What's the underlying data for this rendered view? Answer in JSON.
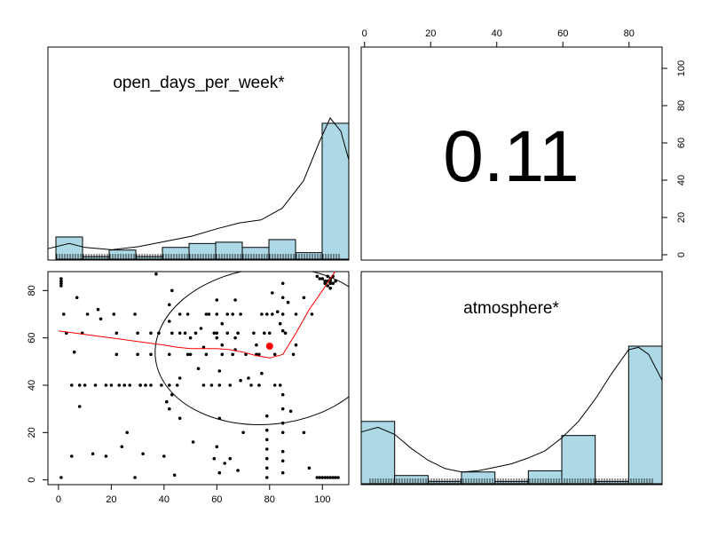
{
  "chart_data": [
    {
      "type": "histogram",
      "title": "open_days_per_week*",
      "bars": [
        {
          "x0": -1,
          "x1": 9,
          "height": 8.5
        },
        {
          "x0": 9,
          "x1": 19,
          "height": 1.0
        },
        {
          "x0": 19,
          "x1": 29,
          "height": 3.5
        },
        {
          "x0": 29,
          "x1": 39,
          "height": 1.0
        },
        {
          "x0": 39,
          "x1": 49,
          "height": 4.5
        },
        {
          "x0": 49,
          "x1": 59,
          "height": 6.0
        },
        {
          "x0": 59,
          "x1": 69,
          "height": 6.5
        },
        {
          "x0": 69,
          "x1": 79,
          "height": 4.5
        },
        {
          "x0": 79,
          "x1": 89,
          "height": 7.5
        },
        {
          "x0": 89,
          "x1": 99,
          "height": 2.5
        },
        {
          "x0": 99,
          "x1": 109,
          "height": 52
        }
      ],
      "density": [
        [
          -4,
          4
        ],
        [
          4,
          6
        ],
        [
          10,
          4.5
        ],
        [
          20,
          3.6
        ],
        [
          30,
          4.8
        ],
        [
          40,
          6.8
        ],
        [
          50,
          8.8
        ],
        [
          60,
          11.8
        ],
        [
          68,
          13.9
        ],
        [
          76,
          15
        ],
        [
          84,
          19.5
        ],
        [
          92,
          30
        ],
        [
          98,
          45
        ],
        [
          102,
          54
        ],
        [
          106,
          49
        ],
        [
          109,
          38
        ]
      ],
      "xlim": [
        -4,
        109
      ],
      "ylim": [
        0,
        54
      ]
    },
    {
      "type": "correlation",
      "value": "0.11",
      "x_ticks": [
        "0",
        "20",
        "40",
        "60",
        "80"
      ],
      "y_ticks": [
        "0",
        "20",
        "40",
        "60",
        "80",
        "100"
      ]
    },
    {
      "type": "scatter",
      "xlabel_ticks": [
        "0",
        "20",
        "40",
        "60",
        "80",
        "100"
      ],
      "ylabel_ticks": [
        "0",
        "20",
        "40",
        "60",
        "80"
      ],
      "xlim": [
        -4,
        110
      ],
      "ylim": [
        -2,
        88
      ],
      "points": [
        [
          1,
          84
        ],
        [
          1,
          83
        ],
        [
          1,
          85
        ],
        [
          1,
          82
        ],
        [
          1,
          1
        ],
        [
          2,
          70
        ],
        [
          3,
          62
        ],
        [
          5,
          40
        ],
        [
          5,
          10
        ],
        [
          6,
          54
        ],
        [
          7,
          77
        ],
        [
          8,
          31
        ],
        [
          8,
          40
        ],
        [
          9,
          62
        ],
        [
          10,
          40
        ],
        [
          11,
          70
        ],
        [
          13,
          11
        ],
        [
          14,
          40
        ],
        [
          15,
          72
        ],
        [
          16,
          68
        ],
        [
          18,
          10
        ],
        [
          18,
          40
        ],
        [
          20,
          40
        ],
        [
          21,
          70
        ],
        [
          22,
          53
        ],
        [
          22,
          62
        ],
        [
          23,
          40
        ],
        [
          24,
          14
        ],
        [
          25,
          40
        ],
        [
          26,
          20
        ],
        [
          27,
          40
        ],
        [
          29,
          1
        ],
        [
          29,
          70
        ],
        [
          30,
          53
        ],
        [
          30,
          62
        ],
        [
          31,
          40
        ],
        [
          31,
          40
        ],
        [
          32,
          11
        ],
        [
          33,
          40
        ],
        [
          35,
          62
        ],
        [
          35,
          53
        ],
        [
          35,
          40
        ],
        [
          37,
          87
        ],
        [
          38,
          62
        ],
        [
          39,
          40
        ],
        [
          40,
          10
        ],
        [
          41,
          33
        ],
        [
          42,
          40
        ],
        [
          42,
          30
        ],
        [
          42,
          53
        ],
        [
          42,
          67
        ],
        [
          42,
          74
        ],
        [
          43,
          62
        ],
        [
          43,
          80
        ],
        [
          43,
          36
        ],
        [
          44,
          2
        ],
        [
          45,
          40
        ],
        [
          46,
          26
        ],
        [
          46,
          43
        ],
        [
          46,
          62
        ],
        [
          46,
          70
        ],
        [
          48,
          62
        ],
        [
          49,
          53
        ],
        [
          49,
          70
        ],
        [
          50,
          53
        ],
        [
          50,
          60
        ],
        [
          51,
          16
        ],
        [
          52,
          62
        ],
        [
          53,
          47
        ],
        [
          54,
          64
        ],
        [
          55,
          40
        ],
        [
          55,
          56
        ],
        [
          56,
          53
        ],
        [
          56,
          70
        ],
        [
          57,
          70
        ],
        [
          58,
          40
        ],
        [
          59,
          9
        ],
        [
          59,
          62
        ],
        [
          60,
          14
        ],
        [
          60,
          60
        ],
        [
          60,
          76
        ],
        [
          60,
          70
        ],
        [
          60,
          62
        ],
        [
          61,
          40
        ],
        [
          61,
          46
        ],
        [
          61,
          26
        ],
        [
          61,
          3
        ],
        [
          62,
          57
        ],
        [
          62,
          66
        ],
        [
          62,
          53
        ],
        [
          63,
          7
        ],
        [
          64,
          62
        ],
        [
          64,
          70
        ],
        [
          65,
          40
        ],
        [
          65,
          9
        ],
        [
          66,
          70
        ],
        [
          66,
          53
        ],
        [
          67,
          55
        ],
        [
          67,
          60
        ],
        [
          67,
          76
        ],
        [
          68,
          62
        ],
        [
          68,
          4
        ],
        [
          69,
          42
        ],
        [
          69,
          70
        ],
        [
          70,
          20
        ],
        [
          71,
          53
        ],
        [
          72,
          43
        ],
        [
          73,
          40
        ],
        [
          74,
          62
        ],
        [
          75,
          57
        ],
        [
          75,
          53
        ],
        [
          76,
          40
        ],
        [
          76,
          53
        ],
        [
          77,
          45
        ],
        [
          77,
          70
        ],
        [
          78,
          62
        ],
        [
          79,
          70
        ],
        [
          79,
          27
        ],
        [
          79,
          21
        ],
        [
          79,
          17
        ],
        [
          79,
          13
        ],
        [
          79,
          9
        ],
        [
          79,
          5
        ],
        [
          79,
          1
        ],
        [
          80,
          62
        ],
        [
          81,
          70
        ],
        [
          81,
          79
        ],
        [
          82,
          53
        ],
        [
          82,
          40
        ],
        [
          83,
          71
        ],
        [
          84,
          66
        ],
        [
          84,
          40
        ],
        [
          85,
          83
        ],
        [
          85,
          77
        ],
        [
          85,
          70
        ],
        [
          85,
          63
        ],
        [
          85,
          36
        ],
        [
          85,
          30
        ],
        [
          85,
          24
        ],
        [
          85,
          20
        ],
        [
          85,
          12
        ],
        [
          85,
          8
        ],
        [
          85,
          3
        ],
        [
          86,
          62
        ],
        [
          87,
          75
        ],
        [
          88,
          29
        ],
        [
          89,
          53
        ],
        [
          90,
          57
        ],
        [
          90,
          70
        ],
        [
          93,
          77
        ],
        [
          93,
          20
        ],
        [
          95,
          5
        ],
        [
          96,
          70
        ],
        [
          98,
          86
        ],
        [
          99,
          85
        ],
        [
          100,
          85
        ],
        [
          101,
          84
        ],
        [
          102,
          86
        ],
        [
          103,
          84
        ],
        [
          104,
          83
        ],
        [
          102,
          82
        ],
        [
          103,
          85
        ],
        [
          104,
          86
        ],
        [
          105,
          84
        ],
        [
          103,
          81
        ],
        [
          101,
          83
        ],
        [
          103,
          83
        ],
        [
          102,
          84
        ],
        [
          98,
          1
        ],
        [
          99,
          1
        ],
        [
          100,
          1
        ],
        [
          101,
          1
        ],
        [
          102,
          1
        ],
        [
          103,
          1
        ],
        [
          104,
          1
        ],
        [
          105,
          1
        ],
        [
          106,
          1
        ]
      ],
      "loess": [
        [
          0,
          63
        ],
        [
          10,
          61.5
        ],
        [
          20,
          60
        ],
        [
          30,
          58.5
        ],
        [
          40,
          57
        ],
        [
          45,
          56
        ],
        [
          50,
          55.5
        ],
        [
          60,
          55.5
        ],
        [
          65,
          55
        ],
        [
          70,
          54
        ],
        [
          75,
          52.5
        ],
        [
          80,
          51.5
        ],
        [
          85,
          53
        ],
        [
          90,
          62
        ],
        [
          95,
          72
        ],
        [
          100,
          80
        ],
        [
          106,
          90
        ]
      ],
      "center_point": [
        80,
        56.5
      ],
      "ellipse": {
        "cx": 79.5,
        "cy": 56.5,
        "rx": 43,
        "ry": 33,
        "rotation_deg": -6
      }
    },
    {
      "type": "histogram",
      "title": "atmosphere*",
      "bars": [
        {
          "x0": 0,
          "x1": 10,
          "height": 26.5
        },
        {
          "x0": 10,
          "x1": 20,
          "height": 3.5
        },
        {
          "x0": 20,
          "x1": 30,
          "height": 1.0
        },
        {
          "x0": 30,
          "x1": 40,
          "height": 5.0
        },
        {
          "x0": 40,
          "x1": 50,
          "height": 1.0
        },
        {
          "x0": 50,
          "x1": 60,
          "height": 5.5
        },
        {
          "x0": 60,
          "x1": 70,
          "height": 20.5
        },
        {
          "x0": 70,
          "x1": 80,
          "height": 1.0
        },
        {
          "x0": 80,
          "x1": 90,
          "height": 58.5
        }
      ],
      "density": [
        [
          0,
          22
        ],
        [
          5,
          24
        ],
        [
          10,
          21
        ],
        [
          15,
          15
        ],
        [
          20,
          10
        ],
        [
          25,
          6.5
        ],
        [
          30,
          5
        ],
        [
          35,
          5.5
        ],
        [
          40,
          7
        ],
        [
          45,
          8.5
        ],
        [
          50,
          11
        ],
        [
          55,
          14
        ],
        [
          60,
          19.5
        ],
        [
          65,
          26.5
        ],
        [
          70,
          36
        ],
        [
          75,
          47
        ],
        [
          80,
          57
        ],
        [
          83,
          58
        ],
        [
          86,
          55
        ],
        [
          90,
          44
        ]
      ],
      "xlim": [
        0,
        90
      ],
      "ylim": [
        0,
        60
      ]
    }
  ]
}
